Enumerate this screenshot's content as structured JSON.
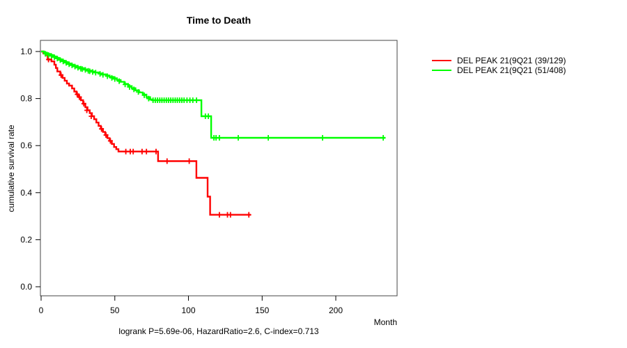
{
  "chart_data": {
    "type": "line",
    "subtype": "kaplan-meier-step-curves",
    "title": "Time to Death",
    "xlabel": "Month",
    "ylabel": "cumulative survival rate",
    "footer": "logrank P=5.69e-06, HazardRatio=2.6, C-index=0.713",
    "x_ticks": [
      0,
      50,
      100,
      150,
      200
    ],
    "y_ticks": [
      "0.0",
      "0.2",
      "0.4",
      "0.6",
      "0.8",
      "1.0"
    ],
    "xlim": [
      0,
      241
    ],
    "ylim": [
      0,
      1.0
    ],
    "grid": false,
    "legend_position": "right-outside",
    "frame_color": "#444444",
    "series": [
      {
        "name": "DEL PEAK 21(9Q21 (39/129)",
        "color": "#ff0000",
        "end_month": 142.3,
        "steps": [
          [
            0,
            1.0
          ],
          [
            1.5,
            0.992
          ],
          [
            3,
            0.984
          ],
          [
            4.5,
            0.966
          ],
          [
            7,
            0.958
          ],
          [
            9,
            0.944
          ],
          [
            10,
            0.93
          ],
          [
            11,
            0.915
          ],
          [
            13,
            0.9
          ],
          [
            14.5,
            0.888
          ],
          [
            16,
            0.876
          ],
          [
            17.5,
            0.864
          ],
          [
            19,
            0.855
          ],
          [
            21,
            0.843
          ],
          [
            22.5,
            0.83
          ],
          [
            24,
            0.818
          ],
          [
            25.5,
            0.806
          ],
          [
            27,
            0.793
          ],
          [
            28.5,
            0.778
          ],
          [
            30,
            0.763
          ],
          [
            31.5,
            0.75
          ],
          [
            33,
            0.738
          ],
          [
            34.5,
            0.725
          ],
          [
            36,
            0.712
          ],
          [
            37.5,
            0.698
          ],
          [
            39,
            0.684
          ],
          [
            40.5,
            0.671
          ],
          [
            42,
            0.658
          ],
          [
            43.5,
            0.645
          ],
          [
            45,
            0.632
          ],
          [
            46.5,
            0.62
          ],
          [
            48,
            0.607
          ],
          [
            49.5,
            0.594
          ],
          [
            51,
            0.585
          ],
          [
            52.5,
            0.575
          ],
          [
            79.4,
            0.534
          ],
          [
            105.4,
            0.463
          ],
          [
            113,
            0.383
          ],
          [
            114.7,
            0.306
          ]
        ],
        "censors": [
          [
            5,
            0.966
          ],
          [
            13.5,
            0.9
          ],
          [
            24.5,
            0.818
          ],
          [
            26,
            0.806
          ],
          [
            29,
            0.778
          ],
          [
            31,
            0.75
          ],
          [
            34,
            0.725
          ],
          [
            41,
            0.671
          ],
          [
            44,
            0.645
          ],
          [
            47,
            0.62
          ],
          [
            57.5,
            0.575
          ],
          [
            60.5,
            0.575
          ],
          [
            62.5,
            0.575
          ],
          [
            68.5,
            0.575
          ],
          [
            71.5,
            0.575
          ],
          [
            78,
            0.575
          ],
          [
            85.5,
            0.534
          ],
          [
            100.5,
            0.534
          ],
          [
            121,
            0.306
          ],
          [
            126.5,
            0.306
          ],
          [
            128.5,
            0.306
          ],
          [
            141,
            0.306
          ]
        ]
      },
      {
        "name": "DEL PEAK 21(9Q21 (51/408)",
        "color": "#00ff00",
        "end_month": 233.6,
        "steps": [
          [
            0,
            1.0
          ],
          [
            2,
            0.995
          ],
          [
            4,
            0.99
          ],
          [
            6,
            0.985
          ],
          [
            8,
            0.979
          ],
          [
            10,
            0.973
          ],
          [
            12,
            0.967
          ],
          [
            14,
            0.961
          ],
          [
            16,
            0.955
          ],
          [
            18,
            0.949
          ],
          [
            20,
            0.944
          ],
          [
            22,
            0.939
          ],
          [
            24,
            0.934
          ],
          [
            26.5,
            0.929
          ],
          [
            29,
            0.924
          ],
          [
            31.5,
            0.919
          ],
          [
            34,
            0.915
          ],
          [
            36.5,
            0.911
          ],
          [
            39,
            0.907
          ],
          [
            41.5,
            0.903
          ],
          [
            44,
            0.898
          ],
          [
            46.5,
            0.892
          ],
          [
            49,
            0.886
          ],
          [
            51.5,
            0.879
          ],
          [
            54,
            0.871
          ],
          [
            56.5,
            0.862
          ],
          [
            59,
            0.853
          ],
          [
            61.5,
            0.844
          ],
          [
            64,
            0.835
          ],
          [
            66.5,
            0.826
          ],
          [
            69,
            0.817
          ],
          [
            71.5,
            0.806
          ],
          [
            74,
            0.796
          ],
          [
            75.5,
            0.793
          ],
          [
            108.8,
            0.725
          ],
          [
            115.4,
            0.633
          ]
        ],
        "censors": [
          [
            3,
            0.99
          ],
          [
            5,
            0.985
          ],
          [
            7,
            0.981
          ],
          [
            9,
            0.976
          ],
          [
            11,
            0.97
          ],
          [
            13,
            0.964
          ],
          [
            15,
            0.958
          ],
          [
            17,
            0.952
          ],
          [
            19,
            0.946
          ],
          [
            21,
            0.941
          ],
          [
            23,
            0.936
          ],
          [
            25,
            0.931
          ],
          [
            27,
            0.927
          ],
          [
            28,
            0.925
          ],
          [
            30,
            0.922
          ],
          [
            32,
            0.918
          ],
          [
            33,
            0.916
          ],
          [
            35,
            0.913
          ],
          [
            37,
            0.91
          ],
          [
            40,
            0.905
          ],
          [
            42,
            0.901
          ],
          [
            45,
            0.895
          ],
          [
            48,
            0.888
          ],
          [
            50,
            0.883
          ],
          [
            53,
            0.874
          ],
          [
            57,
            0.86
          ],
          [
            60,
            0.849
          ],
          [
            63,
            0.839
          ],
          [
            66,
            0.828
          ],
          [
            70,
            0.814
          ],
          [
            73,
            0.8
          ],
          [
            76,
            0.793
          ],
          [
            77.5,
            0.793
          ],
          [
            79,
            0.793
          ],
          [
            80.5,
            0.793
          ],
          [
            82,
            0.793
          ],
          [
            83.5,
            0.793
          ],
          [
            85,
            0.793
          ],
          [
            86.5,
            0.793
          ],
          [
            88,
            0.793
          ],
          [
            89.5,
            0.793
          ],
          [
            91,
            0.793
          ],
          [
            92.5,
            0.793
          ],
          [
            94,
            0.793
          ],
          [
            95.5,
            0.793
          ],
          [
            97,
            0.793
          ],
          [
            99,
            0.793
          ],
          [
            101,
            0.793
          ],
          [
            103,
            0.793
          ],
          [
            105.5,
            0.793
          ],
          [
            111.5,
            0.725
          ],
          [
            113.5,
            0.725
          ],
          [
            117.3,
            0.633
          ],
          [
            118.7,
            0.633
          ],
          [
            121,
            0.633
          ],
          [
            133.8,
            0.633
          ],
          [
            154.2,
            0.633
          ],
          [
            191,
            0.633
          ],
          [
            232.2,
            0.633
          ]
        ]
      }
    ]
  }
}
